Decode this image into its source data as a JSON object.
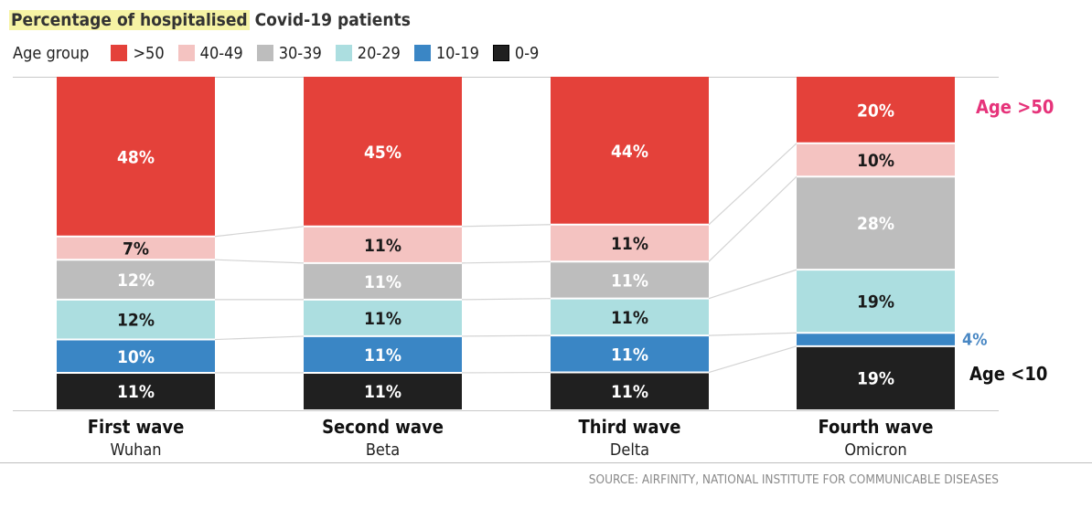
{
  "chart_data": {
    "type": "bar",
    "stacked": true,
    "normalized": true,
    "title_highlight": "Percentage of hospitalised",
    "title_rest": "Covid-19 patients",
    "legend_label": "Age group",
    "categories": [
      "First wave",
      "Second wave",
      "Third wave",
      "Fourth wave"
    ],
    "subcategories": [
      "Wuhan",
      "Beta",
      "Delta",
      "Omicron"
    ],
    "series": [
      {
        "name": ">50",
        "color": "#e4413a",
        "values": [
          48,
          45,
          44,
          20
        ],
        "labels": [
          "48%",
          "45%",
          "44%",
          "20%"
        ]
      },
      {
        "name": "40-49",
        "color": "#f4c3c1",
        "values": [
          7,
          11,
          11,
          10
        ],
        "labels": [
          "7%",
          "11%",
          "11%",
          "10%"
        ]
      },
      {
        "name": "30-39",
        "color": "#bdbdbd",
        "values": [
          12,
          11,
          11,
          28
        ],
        "labels": [
          "12%",
          "11%",
          "11%",
          "28%"
        ]
      },
      {
        "name": "20-29",
        "color": "#acdee0",
        "values": [
          12,
          11,
          11,
          19
        ],
        "labels": [
          "12%",
          "11%",
          "11%",
          "19%"
        ]
      },
      {
        "name": "10-19",
        "color": "#3a86c5",
        "values": [
          10,
          11,
          11,
          4
        ],
        "labels": [
          "10%",
          "11%",
          "11%",
          ""
        ]
      },
      {
        "name": "0-9",
        "color": "#202020",
        "values": [
          11,
          11,
          11,
          19
        ],
        "labels": [
          "11%",
          "11%",
          "11%",
          "19%"
        ]
      }
    ],
    "outside_labels": {
      "ten_to_nineteen_last": "4%"
    },
    "annotations": {
      "top": "Age >50",
      "bottom": "Age <10"
    },
    "source": "SOURCE: AIRFINITY, NATIONAL INSTITUTE FOR COMMUNICABLE DISEASES",
    "colors": {
      "annotation_top": "#e6337a",
      "annotation_bottom": "#111111",
      "outside_label": "#4a88c4",
      "title_highlight_bg": "#f6f3a4"
    }
  }
}
